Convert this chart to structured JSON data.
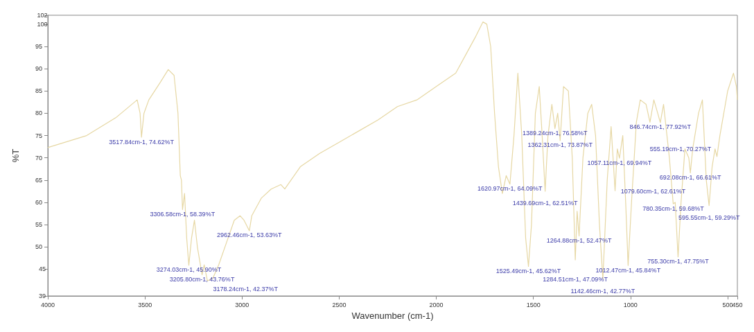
{
  "chart_data": {
    "type": "line",
    "xlabel": "Wavenumber (cm-1)",
    "ylabel": "%T",
    "xlim": [
      4000,
      450
    ],
    "xticks": [
      4000,
      3500,
      3000,
      2500,
      2000,
      1500,
      1000,
      500,
      450
    ],
    "ylim": [
      39,
      102
    ],
    "yticks": [
      39,
      45,
      50,
      55,
      60,
      65,
      70,
      75,
      80,
      85,
      90,
      95,
      100,
      102
    ],
    "grid": false,
    "marker": "none",
    "line_style": "solid",
    "series": [
      {
        "color": "#e6d7a3",
        "x": [
          4000,
          3800,
          3650,
          3540,
          3525,
          3517.84,
          3505,
          3480,
          3420,
          3380,
          3350,
          3330,
          3318,
          3312,
          3306.58,
          3296,
          3285,
          3274.03,
          3260,
          3245,
          3230,
          3205.8,
          3195,
          3178.24,
          3150,
          3120,
          3080,
          3040,
          3010,
          2990,
          2962.46,
          2950,
          2900,
          2850,
          2800,
          2780,
          2700,
          2600,
          2500,
          2400,
          2300,
          2200,
          2100,
          2000,
          1900,
          1850,
          1800,
          1760,
          1740,
          1720,
          1700,
          1680,
          1660,
          1640,
          1620.97,
          1600,
          1580,
          1560,
          1540,
          1525.49,
          1510,
          1490,
          1470,
          1455,
          1439.69,
          1425,
          1405,
          1389.24,
          1375,
          1362.31,
          1345,
          1320,
          1300,
          1284.51,
          1275,
          1264.88,
          1245,
          1220,
          1200,
          1180,
          1160,
          1142.46,
          1120,
          1100,
          1090,
          1079.6,
          1068,
          1057.11,
          1040,
          1025,
          1012.47,
          995,
          970,
          950,
          920,
          900,
          880,
          860,
          846.74,
          830,
          800,
          780.35,
          770,
          755.3,
          740,
          720,
          700,
          692.08,
          680,
          650,
          630,
          610,
          595.55,
          580,
          565,
          555.19,
          540,
          500,
          470,
          455,
          450
        ],
        "values": [
          72.3,
          75,
          79,
          83,
          80,
          74.62,
          80,
          83,
          87,
          89.8,
          88.5,
          80,
          66,
          65,
          58.39,
          62,
          52,
          45.9,
          52,
          56,
          50,
          43.76,
          46,
          42.37,
          43,
          46,
          51,
          56,
          57,
          56,
          53.63,
          57,
          61,
          63,
          64,
          63,
          68,
          71,
          73.5,
          76,
          78.5,
          81.5,
          83,
          86,
          89,
          93,
          97,
          100.5,
          100,
          95,
          80,
          68,
          62,
          66,
          64.09,
          75,
          89,
          75,
          52,
          45.62,
          55,
          80,
          86,
          75,
          62.51,
          75,
          82,
          76.58,
          80,
          73.87,
          86,
          85,
          70,
          47.09,
          58,
          52.47,
          70,
          80,
          82,
          75,
          55,
          42.77,
          65,
          77,
          70,
          62.61,
          72,
          69.94,
          75,
          60,
          45.84,
          60,
          78,
          83,
          82,
          78,
          83,
          80,
          77.92,
          82,
          70,
          59.68,
          60,
          47.75,
          60,
          72,
          70,
          66.61,
          72,
          80,
          83,
          65,
          59.29,
          68,
          72,
          70.27,
          75,
          85,
          89,
          86,
          83
        ]
      }
    ],
    "annotations": [
      {
        "text": "3517.84cm-1, 74.62%T",
        "x": 3517.84,
        "y": 74.62
      },
      {
        "text": "3306.58cm-1, 58.39%T",
        "x": 3306.58,
        "y": 58.39
      },
      {
        "text": "3274.03cm-1, 45.90%T",
        "x": 3274.03,
        "y": 45.9
      },
      {
        "text": "3205.80cm-1, 43.76%T",
        "x": 3205.8,
        "y": 43.76
      },
      {
        "text": "3178.24cm-1, 42.37%T",
        "x": 3178.24,
        "y": 42.37
      },
      {
        "text": "2962.46cm-1, 53.63%T",
        "x": 2962.46,
        "y": 53.63
      },
      {
        "text": "1620.97cm-1, 64.09%T",
        "x": 1620.97,
        "y": 64.09
      },
      {
        "text": "1525.49cm-1, 45.62%T",
        "x": 1525.49,
        "y": 45.62
      },
      {
        "text": "1439.69cm-1, 62.51%T",
        "x": 1439.69,
        "y": 62.51
      },
      {
        "text": "1389.24cm-1, 76.58%T",
        "x": 1389.24,
        "y": 76.58
      },
      {
        "text": "1362.31cm-1, 73.87%T",
        "x": 1362.31,
        "y": 73.87
      },
      {
        "text": "1284.51cm-1, 47.09%T",
        "x": 1284.51,
        "y": 47.09
      },
      {
        "text": "1264.88cm-1, 52.47%T",
        "x": 1264.88,
        "y": 52.47
      },
      {
        "text": "1142.46cm-1, 42.77%T",
        "x": 1142.46,
        "y": 42.77
      },
      {
        "text": "1079.60cm-1, 62.61%T",
        "x": 1079.6,
        "y": 62.61
      },
      {
        "text": "1057.11cm-1, 69.94%T",
        "x": 1057.11,
        "y": 69.94
      },
      {
        "text": "1012.47cm-1, 45.84%T",
        "x": 1012.47,
        "y": 45.84
      },
      {
        "text": "846.74cm-1, 77.92%T",
        "x": 846.74,
        "y": 77.92
      },
      {
        "text": "780.35cm-1, 59.68%T",
        "x": 780.35,
        "y": 59.68
      },
      {
        "text": "755.30cm-1, 47.75%T",
        "x": 755.3,
        "y": 47.75
      },
      {
        "text": "692.08cm-1, 66.61%T",
        "x": 692.08,
        "y": 66.61
      },
      {
        "text": "595.55cm-1, 59.29%T",
        "x": 595.55,
        "y": 59.29
      },
      {
        "text": "555.19cm-1, 70.27%T",
        "x": 555.19,
        "y": 70.27
      }
    ]
  }
}
